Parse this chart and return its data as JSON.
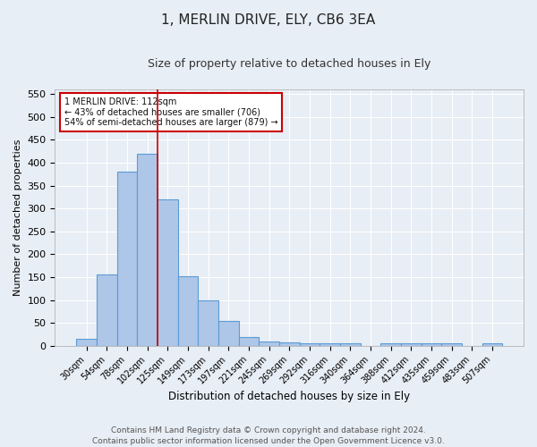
{
  "title": "1, MERLIN DRIVE, ELY, CB6 3EA",
  "subtitle": "Size of property relative to detached houses in Ely",
  "xlabel": "Distribution of detached houses by size in Ely",
  "ylabel": "Number of detached properties",
  "annotation_line1": "1 MERLIN DRIVE: 112sqm",
  "annotation_line2": "← 43% of detached houses are smaller (706)",
  "annotation_line3": "54% of semi-detached houses are larger (879) →",
  "categories": [
    "30sqm",
    "54sqm",
    "78sqm",
    "102sqm",
    "125sqm",
    "149sqm",
    "173sqm",
    "197sqm",
    "221sqm",
    "245sqm",
    "269sqm",
    "292sqm",
    "316sqm",
    "340sqm",
    "364sqm",
    "388sqm",
    "412sqm",
    "435sqm",
    "459sqm",
    "483sqm",
    "507sqm"
  ],
  "values": [
    15,
    155,
    381,
    420,
    320,
    152,
    100,
    55,
    20,
    10,
    7,
    6,
    6,
    6,
    0,
    5,
    5,
    5,
    5,
    0,
    6
  ],
  "bar_color": "#aec6e8",
  "bar_edge_color": "#5b9bd5",
  "redline_x": 3.5,
  "ylim": [
    0,
    560
  ],
  "yticks": [
    0,
    50,
    100,
    150,
    200,
    250,
    300,
    350,
    400,
    450,
    500,
    550
  ],
  "background_color": "#e8eef5",
  "grid_color": "#ffffff",
  "title_fontsize": 11,
  "subtitle_fontsize": 9,
  "footer": "Contains HM Land Registry data © Crown copyright and database right 2024.\nContains public sector information licensed under the Open Government Licence v3.0.",
  "footer_fontsize": 6.5
}
